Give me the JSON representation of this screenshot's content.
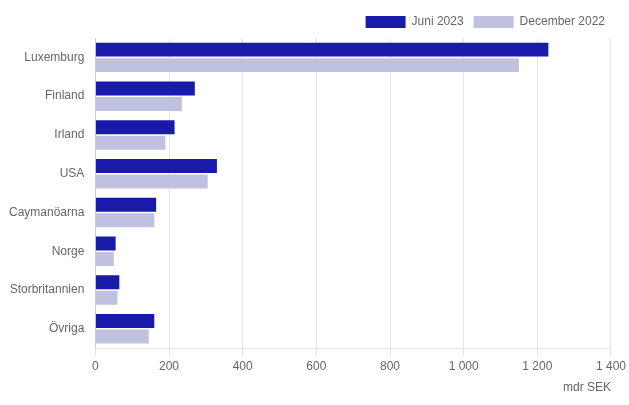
{
  "chart_data": {
    "type": "bar",
    "orientation": "horizontal",
    "categories": [
      "Luxemburg",
      "Finland",
      "Irland",
      "USA",
      "Caymanöarna",
      "Norge",
      "Storbritannien",
      "Övriga"
    ],
    "series": [
      {
        "name": "Juni 2023",
        "color": "#1a1aaa",
        "values": [
          1230,
          270,
          215,
          330,
          165,
          55,
          65,
          160
        ]
      },
      {
        "name": "December 2022",
        "color": "#c0c0e0",
        "values": [
          1150,
          235,
          190,
          305,
          160,
          50,
          60,
          145
        ]
      }
    ],
    "xlabel": "mdr SEK",
    "xlim": [
      0,
      1400
    ],
    "xticks": [
      0,
      200,
      400,
      600,
      800,
      {
        "value": 1000,
        "label": "1 000"
      },
      {
        "value": 1200,
        "label": "1 200"
      },
      {
        "value": 1400,
        "label": "1 400"
      }
    ],
    "grid": true,
    "legend": "upper right"
  }
}
